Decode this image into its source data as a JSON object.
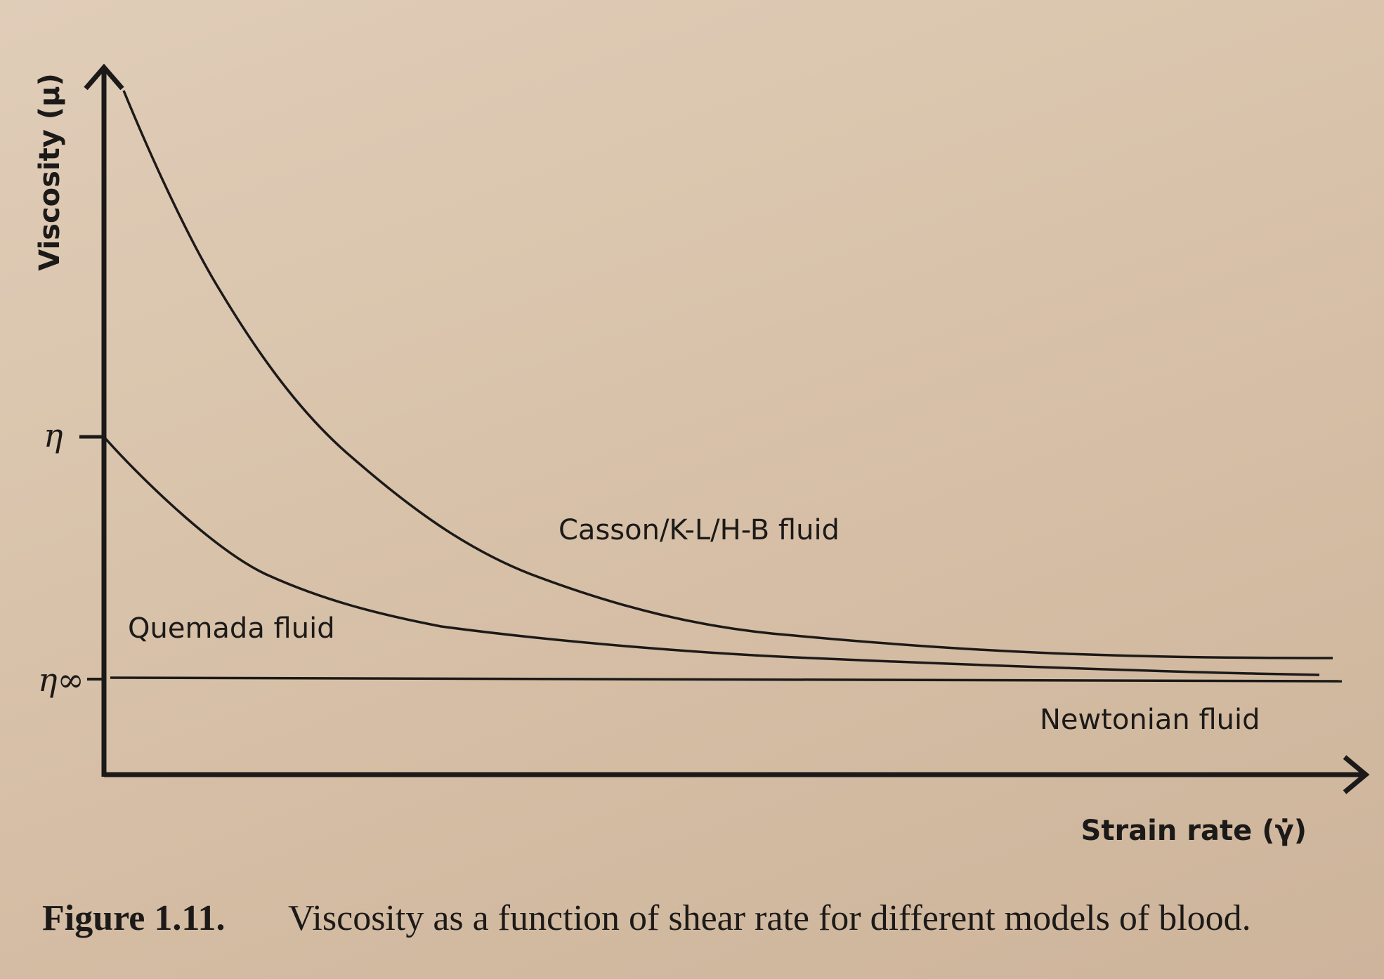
{
  "figure": {
    "y_axis_label": "Viscosity (μ)",
    "x_axis_label": "Strain rate (γ̇)",
    "y_ticks": [
      "η",
      "η∞"
    ],
    "curve_labels": [
      "Casson/K-L/H-B fluid",
      "Quemada fluid",
      "Newtonian fluid"
    ],
    "caption": {
      "number": "Figure 1.11.",
      "text": "Viscosity as a function of shear rate for different models of blood."
    }
  }
}
